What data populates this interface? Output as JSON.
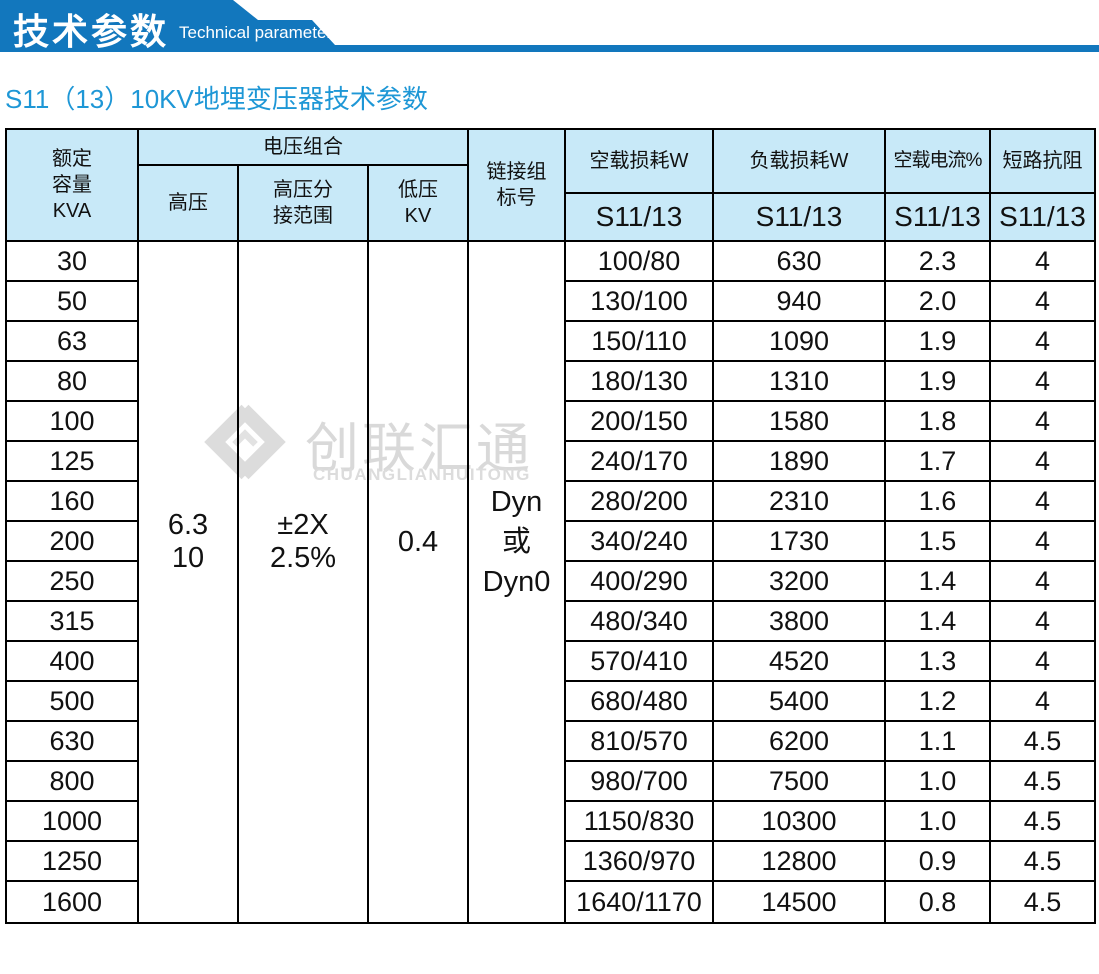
{
  "banner": {
    "title": "技术参数",
    "subtitle": "Technical parameter",
    "color": "#1277bd"
  },
  "heading": "S11（13）10KV地埋变压器技术参数",
  "heading_color": "#1e97d6",
  "watermark": {
    "cn": "创联汇通",
    "en": "CHUANGLIANHUITONG",
    "logo": "interlocked-diamond-logo",
    "color": "#d9d9d9"
  },
  "table": {
    "header_bg": "#c8e9f8",
    "header": {
      "capacity": [
        "额定",
        "容量",
        "KVA"
      ],
      "voltage_group": "电压组合",
      "hv": "高压",
      "hv_tap": [
        "高压分",
        "接范围"
      ],
      "lv": [
        "低压",
        "KV"
      ],
      "vector": [
        "链接组",
        "标号"
      ],
      "no_load_loss": "空载损耗W",
      "load_loss": "负载损耗W",
      "no_load_current": "空载电流%",
      "impedance": "短路抗阻",
      "sub": "S11/13"
    },
    "merged": {
      "hv": [
        "6.3",
        "10"
      ],
      "tap": [
        "±2X",
        "2.5%"
      ],
      "lv": "0.4",
      "vector": [
        "Dyn",
        "或",
        "Dyn0"
      ]
    },
    "rows": [
      {
        "kva": "30",
        "noload": "100/80",
        "load": "630",
        "current": "2.3",
        "imp": "4"
      },
      {
        "kva": "50",
        "noload": "130/100",
        "load": "940",
        "current": "2.0",
        "imp": "4"
      },
      {
        "kva": "63",
        "noload": "150/110",
        "load": "1090",
        "current": "1.9",
        "imp": "4"
      },
      {
        "kva": "80",
        "noload": "180/130",
        "load": "1310",
        "current": "1.9",
        "imp": "4"
      },
      {
        "kva": "100",
        "noload": "200/150",
        "load": "1580",
        "current": "1.8",
        "imp": "4"
      },
      {
        "kva": "125",
        "noload": "240/170",
        "load": "1890",
        "current": "1.7",
        "imp": "4"
      },
      {
        "kva": "160",
        "noload": "280/200",
        "load": "2310",
        "current": "1.6",
        "imp": "4"
      },
      {
        "kva": "200",
        "noload": "340/240",
        "load": "1730",
        "current": "1.5",
        "imp": "4"
      },
      {
        "kva": "250",
        "noload": "400/290",
        "load": "3200",
        "current": "1.4",
        "imp": "4"
      },
      {
        "kva": "315",
        "noload": "480/340",
        "load": "3800",
        "current": "1.4",
        "imp": "4"
      },
      {
        "kva": "400",
        "noload": "570/410",
        "load": "4520",
        "current": "1.3",
        "imp": "4"
      },
      {
        "kva": "500",
        "noload": "680/480",
        "load": "5400",
        "current": "1.2",
        "imp": "4"
      },
      {
        "kva": "630",
        "noload": "810/570",
        "load": "6200",
        "current": "1.1",
        "imp": "4.5"
      },
      {
        "kva": "800",
        "noload": "980/700",
        "load": "7500",
        "current": "1.0",
        "imp": "4.5"
      },
      {
        "kva": "1000",
        "noload": "1150/830",
        "load": "10300",
        "current": "1.0",
        "imp": "4.5"
      },
      {
        "kva": "1250",
        "noload": "1360/970",
        "load": "12800",
        "current": "0.9",
        "imp": "4.5"
      },
      {
        "kva": "1600",
        "noload": "1640/1170",
        "load": "14500",
        "current": "0.8",
        "imp": "4.5"
      }
    ]
  }
}
